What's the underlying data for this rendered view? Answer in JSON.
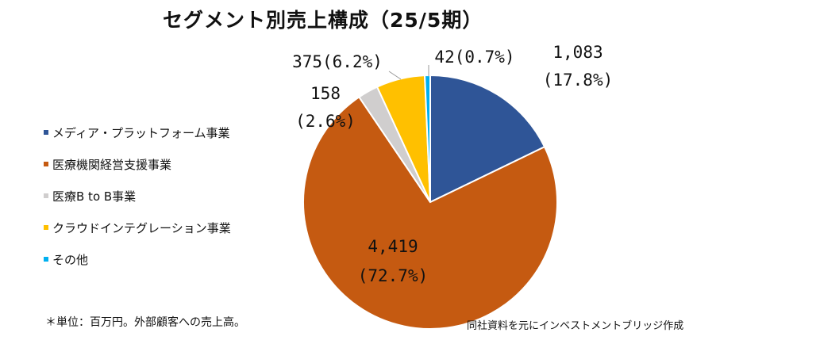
{
  "chart_data": {
    "type": "pie",
    "title": "セグメント別売上構成（25/5期）",
    "unit_note": "＊単位：百万円。外部顧客への売上高。",
    "source_note": "同社資料を元にインベストメントブリッジ作成",
    "legend_position": "left",
    "slices": [
      {
        "name": "メディア・プラットフォーム事業",
        "value": 1083,
        "value_label": "1,083",
        "pct_label": "(17.8%)",
        "color": "#2F5597"
      },
      {
        "name": "医療機関経営支援事業",
        "value": 4419,
        "value_label": "4,419",
        "pct_label": "(72.7%)",
        "color": "#C55A11"
      },
      {
        "name": "医療B to B事業",
        "value": 158,
        "value_label": "158",
        "pct_label": "(2.6%)",
        "color": "#D0CECE"
      },
      {
        "name": "クラウドインテグレーション事業",
        "value": 375,
        "value_label": "375",
        "pct_label": "(6.2%)",
        "color": "#FFC000"
      },
      {
        "name": "その他",
        "value": 42,
        "value_label": "42",
        "pct_label": "(0.7%)",
        "color": "#00B0F0"
      }
    ]
  }
}
